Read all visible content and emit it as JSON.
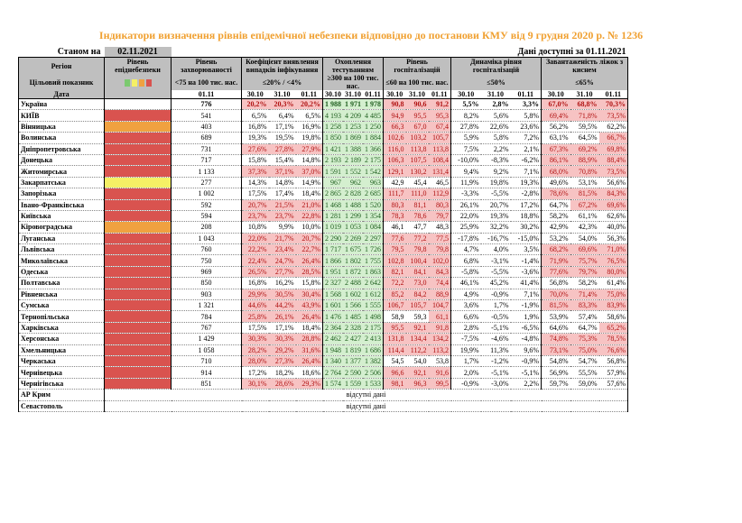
{
  "title": "Індикатори визначення рівнів епідемічної небезпеки відповідно до постанови КМУ від 9 грудня 2020 р. № 1236",
  "status_label": "Станом на",
  "status_date": "02.11.2021",
  "data_available": "Дані доступні за 01.11.2021",
  "headers": {
    "region": "Регіон",
    "target": "Цільовий показник",
    "date": "Дата",
    "level": "Рівень епіднебезпеки",
    "incidence": "Рівень захворюваності",
    "incidence_target": "<75 на 100 тис. нас.",
    "detection": "Коефіцієнт виявлення випадків інфікування",
    "detection_target": "≤20% / <4%",
    "testing": "Охоплення тестуванням",
    "testing_target": "≥300 на 100 тис. нас.",
    "hosp": "Рівень госпіталізацій",
    "hosp_target": "≤60 на 100 тис. нас.",
    "dynamics": "Динаміка рівня госпіталізацій",
    "dynamics_target": "≤50%",
    "oxygen": "Завантаженість ліжок з киснем",
    "oxygen_target": "≤65%",
    "d1": "30.10",
    "d2": "31.10",
    "d3": "01.11"
  },
  "level_colors": {
    "red": "#d9534f",
    "orange": "#f0a140",
    "yellow": "#f5f065",
    "green": "#7bc96f"
  },
  "rows": [
    {
      "name": "Україна",
      "level": "",
      "inc": "776",
      "det": [
        "20,2%",
        "20,3%",
        "20,2%"
      ],
      "tst": [
        "1 988",
        "1 971",
        "1 978"
      ],
      "hosp": [
        "90,8",
        "90,6",
        "91,2"
      ],
      "dyn": [
        "5,5%",
        "2,8%",
        "3,3%"
      ],
      "oxy": [
        "67,0%",
        "68,8%",
        "70,3%"
      ]
    },
    {
      "name": "КИЇВ",
      "level": "red",
      "inc": "541",
      "det": [
        "6,5%",
        "6,4%",
        "6,5%"
      ],
      "tst": [
        "4 193",
        "4 209",
        "4 485"
      ],
      "hosp": [
        "94,9",
        "95,5",
        "95,3"
      ],
      "dyn": [
        "8,2%",
        "5,6%",
        "5,8%"
      ],
      "oxy": [
        "69,4%",
        "71,8%",
        "73,5%"
      ]
    },
    {
      "name": "Вінницька",
      "level": "orange",
      "inc": "403",
      "det": [
        "16,8%",
        "17,1%",
        "16,9%"
      ],
      "tst": [
        "1 258",
        "1 253",
        "1 250"
      ],
      "hosp": [
        "66,3",
        "67,0",
        "67,4"
      ],
      "dyn": [
        "27,8%",
        "22,6%",
        "23,6%"
      ],
      "oxy": [
        "56,2%",
        "59,5%",
        "62,2%"
      ]
    },
    {
      "name": "Волинська",
      "level": "red",
      "inc": "689",
      "det": [
        "19,3%",
        "19,5%",
        "19,8%"
      ],
      "tst": [
        "1 850",
        "1 869",
        "1 884"
      ],
      "hosp": [
        "102,6",
        "103,2",
        "105,7"
      ],
      "dyn": [
        "5,9%",
        "5,8%",
        "7,2%"
      ],
      "oxy": [
        "63,1%",
        "64,5%",
        "66,7%"
      ]
    },
    {
      "name": "Дніпропетровська",
      "level": "red",
      "inc": "731",
      "det": [
        "27,6%",
        "27,8%",
        "27,9%"
      ],
      "tst": [
        "1 421",
        "1 388",
        "1 366"
      ],
      "hosp": [
        "116,0",
        "113,8",
        "113,8"
      ],
      "dyn": [
        "7,5%",
        "2,2%",
        "2,1%"
      ],
      "oxy": [
        "67,3%",
        "69,2%",
        "69,8%"
      ]
    },
    {
      "name": "Донецька",
      "level": "red",
      "inc": "717",
      "det": [
        "15,8%",
        "15,4%",
        "14,8%"
      ],
      "tst": [
        "2 193",
        "2 189",
        "2 175"
      ],
      "hosp": [
        "106,3",
        "107,5",
        "108,4"
      ],
      "dyn": [
        "-10,0%",
        "-8,3%",
        "-6,2%"
      ],
      "oxy": [
        "86,1%",
        "88,9%",
        "88,4%"
      ]
    },
    {
      "name": "Житомирська",
      "level": "red",
      "inc": "1 133",
      "det": [
        "37,3%",
        "37,1%",
        "37,0%"
      ],
      "tst": [
        "1 591",
        "1 552",
        "1 542"
      ],
      "hosp": [
        "129,1",
        "130,2",
        "131,4"
      ],
      "dyn": [
        "9,4%",
        "9,2%",
        "7,1%"
      ],
      "oxy": [
        "68,0%",
        "70,8%",
        "73,5%"
      ]
    },
    {
      "name": "Закарпатська",
      "level": "yellow",
      "inc": "277",
      "det": [
        "14,3%",
        "14,8%",
        "14,9%"
      ],
      "tst": [
        "967",
        "962",
        "963"
      ],
      "hosp": [
        "42,9",
        "45,4",
        "46,5"
      ],
      "dyn": [
        "11,9%",
        "19,8%",
        "19,3%"
      ],
      "oxy": [
        "49,6%",
        "53,1%",
        "56,6%"
      ]
    },
    {
      "name": "Запорізька",
      "level": "red",
      "inc": "1 002",
      "det": [
        "17,5%",
        "17,4%",
        "18,4%"
      ],
      "tst": [
        "2 865",
        "2 828",
        "2 685"
      ],
      "hosp": [
        "111,7",
        "111,0",
        "112,9"
      ],
      "dyn": [
        "-3,3%",
        "-5,5%",
        "-2,8%"
      ],
      "oxy": [
        "78,6%",
        "81,5%",
        "84,3%"
      ]
    },
    {
      "name": "Івано-Франківська",
      "level": "red",
      "inc": "592",
      "det": [
        "20,7%",
        "21,5%",
        "21,0%"
      ],
      "tst": [
        "1 468",
        "1 488",
        "1 520"
      ],
      "hosp": [
        "80,3",
        "81,1",
        "80,3"
      ],
      "dyn": [
        "26,1%",
        "20,7%",
        "17,2%"
      ],
      "oxy": [
        "64,7%",
        "67,2%",
        "69,6%"
      ]
    },
    {
      "name": "Київська",
      "level": "red",
      "inc": "594",
      "det": [
        "23,7%",
        "23,7%",
        "22,8%"
      ],
      "tst": [
        "1 281",
        "1 299",
        "1 354"
      ],
      "hosp": [
        "78,3",
        "78,6",
        "79,7"
      ],
      "dyn": [
        "22,0%",
        "19,3%",
        "18,8%"
      ],
      "oxy": [
        "58,2%",
        "61,1%",
        "62,6%"
      ]
    },
    {
      "name": "Кіровоградська",
      "level": "orange",
      "inc": "208",
      "det": [
        "10,8%",
        "9,9%",
        "10,0%"
      ],
      "tst": [
        "1 019",
        "1 053",
        "1 084"
      ],
      "hosp": [
        "46,1",
        "47,7",
        "48,3"
      ],
      "dyn": [
        "25,9%",
        "32,2%",
        "30,2%"
      ],
      "oxy": [
        "42,9%",
        "42,3%",
        "40,0%"
      ]
    },
    {
      "name": "Луганська",
      "level": "red",
      "inc": "1 043",
      "det": [
        "22,0%",
        "21,7%",
        "20,7%"
      ],
      "tst": [
        "2 290",
        "2 269",
        "2 297"
      ],
      "hosp": [
        "77,6",
        "77,2",
        "77,5"
      ],
      "dyn": [
        "-17,8%",
        "-16,7%",
        "-15,0%"
      ],
      "oxy": [
        "53,2%",
        "54,0%",
        "56,3%"
      ]
    },
    {
      "name": "Львівська",
      "level": "red",
      "inc": "760",
      "det": [
        "22,2%",
        "23,4%",
        "22,7%"
      ],
      "tst": [
        "1 717",
        "1 675",
        "1 726"
      ],
      "hosp": [
        "79,5",
        "79,8",
        "79,8"
      ],
      "dyn": [
        "4,7%",
        "4,0%",
        "3,5%"
      ],
      "oxy": [
        "68,2%",
        "69,6%",
        "71,0%"
      ]
    },
    {
      "name": "Миколаївська",
      "level": "red",
      "inc": "750",
      "det": [
        "22,4%",
        "24,7%",
        "26,4%"
      ],
      "tst": [
        "1 866",
        "1 802",
        "1 755"
      ],
      "hosp": [
        "102,8",
        "100,4",
        "102,0"
      ],
      "dyn": [
        "6,8%",
        "-3,1%",
        "-1,4%"
      ],
      "oxy": [
        "71,9%",
        "75,7%",
        "76,5%"
      ]
    },
    {
      "name": "Одеська",
      "level": "red",
      "inc": "969",
      "det": [
        "26,5%",
        "27,7%",
        "28,5%"
      ],
      "tst": [
        "1 951",
        "1 872",
        "1 863"
      ],
      "hosp": [
        "82,1",
        "84,1",
        "84,3"
      ],
      "dyn": [
        "-5,8%",
        "-5,5%",
        "-3,6%"
      ],
      "oxy": [
        "77,6%",
        "79,7%",
        "80,0%"
      ]
    },
    {
      "name": "Полтавська",
      "level": "red",
      "inc": "850",
      "det": [
        "16,8%",
        "16,2%",
        "15,8%"
      ],
      "tst": [
        "2 327",
        "2 488",
        "2 642"
      ],
      "hosp": [
        "72,2",
        "73,0",
        "74,4"
      ],
      "dyn": [
        "46,1%",
        "45,2%",
        "41,4%"
      ],
      "oxy": [
        "56,8%",
        "58,2%",
        "61,4%"
      ]
    },
    {
      "name": "Рівненська",
      "level": "red",
      "inc": "903",
      "det": [
        "29,9%",
        "30,5%",
        "30,4%"
      ],
      "tst": [
        "1 568",
        "1 602",
        "1 612"
      ],
      "hosp": [
        "85,2",
        "84,2",
        "88,9"
      ],
      "dyn": [
        "4,9%",
        "-0,9%",
        "7,1%"
      ],
      "oxy": [
        "70,0%",
        "71,4%",
        "75,0%"
      ]
    },
    {
      "name": "Сумська",
      "level": "red",
      "inc": "1 321",
      "det": [
        "44,6%",
        "44,2%",
        "43,9%"
      ],
      "tst": [
        "1 601",
        "1 566",
        "1 555"
      ],
      "hosp": [
        "106,7",
        "105,7",
        "104,7"
      ],
      "dyn": [
        "3,6%",
        "1,7%",
        "-1,9%"
      ],
      "oxy": [
        "81,5%",
        "83,3%",
        "83,9%"
      ]
    },
    {
      "name": "Тернопільська",
      "level": "red",
      "inc": "784",
      "det": [
        "25,8%",
        "26,1%",
        "26,4%"
      ],
      "tst": [
        "1 476",
        "1 485",
        "1 498"
      ],
      "hosp": [
        "58,9",
        "59,3",
        "61,1"
      ],
      "dyn": [
        "6,6%",
        "-0,5%",
        "1,9%"
      ],
      "oxy": [
        "53,9%",
        "57,4%",
        "58,6%"
      ]
    },
    {
      "name": "Харківська",
      "level": "red",
      "inc": "767",
      "det": [
        "17,5%",
        "17,1%",
        "18,4%"
      ],
      "tst": [
        "2 364",
        "2 328",
        "2 175"
      ],
      "hosp": [
        "95,5",
        "92,1",
        "91,8"
      ],
      "dyn": [
        "2,8%",
        "-5,1%",
        "-6,5%"
      ],
      "oxy": [
        "64,6%",
        "64,7%",
        "65,2%"
      ]
    },
    {
      "name": "Херсонська",
      "level": "red",
      "inc": "1 429",
      "det": [
        "30,3%",
        "30,3%",
        "28,8%"
      ],
      "tst": [
        "2 462",
        "2 427",
        "2 413"
      ],
      "hosp": [
        "131,8",
        "134,4",
        "134,2"
      ],
      "dyn": [
        "-7,5%",
        "-4,6%",
        "-4,8%"
      ],
      "oxy": [
        "74,8%",
        "75,3%",
        "78,5%"
      ]
    },
    {
      "name": "Хмельницька",
      "level": "red",
      "inc": "1 058",
      "det": [
        "28,2%",
        "29,2%",
        "31,6%"
      ],
      "tst": [
        "1 948",
        "1 819",
        "1 686"
      ],
      "hosp": [
        "114,4",
        "112,2",
        "113,2"
      ],
      "dyn": [
        "19,9%",
        "11,3%",
        "9,6%"
      ],
      "oxy": [
        "73,1%",
        "75,0%",
        "76,6%"
      ]
    },
    {
      "name": "Черкаська",
      "level": "red",
      "inc": "710",
      "det": [
        "28,0%",
        "27,3%",
        "26,4%"
      ],
      "tst": [
        "1 340",
        "1 377",
        "1 382"
      ],
      "hosp": [
        "54,5",
        "54,0",
        "53,8"
      ],
      "dyn": [
        "1,7%",
        "-1,2%",
        "-0,9%"
      ],
      "oxy": [
        "54,8%",
        "54,7%",
        "56,8%"
      ]
    },
    {
      "name": "Чернівецька",
      "level": "red",
      "inc": "914",
      "det": [
        "17,2%",
        "18,2%",
        "18,6%"
      ],
      "tst": [
        "2 764",
        "2 590",
        "2 506"
      ],
      "hosp": [
        "96,6",
        "92,1",
        "91,6"
      ],
      "dyn": [
        "2,0%",
        "-5,1%",
        "-5,1%"
      ],
      "oxy": [
        "56,9%",
        "55,5%",
        "57,9%"
      ]
    },
    {
      "name": "Чернігівська",
      "level": "red",
      "inc": "851",
      "det": [
        "30,1%",
        "28,6%",
        "29,3%"
      ],
      "tst": [
        "1 574",
        "1 559",
        "1 533"
      ],
      "hosp": [
        "98,1",
        "96,3",
        "99,5"
      ],
      "dyn": [
        "-0,9%",
        "-3,0%",
        "2,2%"
      ],
      "oxy": [
        "59,7%",
        "59,0%",
        "57,6%"
      ]
    }
  ],
  "missing_rows": [
    {
      "name": "АР Крим",
      "text": "відсутні дані"
    },
    {
      "name": "Севастополь",
      "text": "відсутні дані"
    }
  ]
}
